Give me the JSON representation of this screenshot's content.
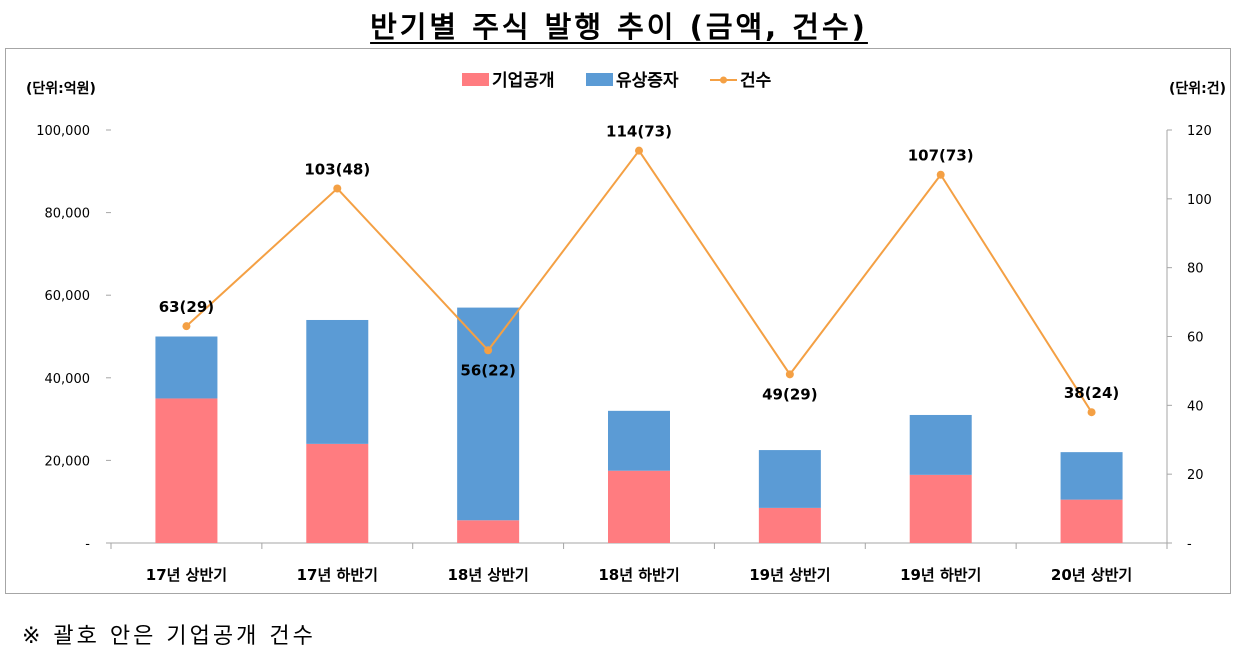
{
  "title": "반기별 주식 발행 추이 (금액, 건수)",
  "note": "※ 괄호 안은 기업공개 건수",
  "chart_data": {
    "type": "bar",
    "stacked": true,
    "categories": [
      "17년 상반기",
      "17년 하반기",
      "18년 상반기",
      "18년 하반기",
      "19년 상반기",
      "19년 하반기",
      "20년 상반기"
    ],
    "left_axis": {
      "unit_label": "(단위:억원)",
      "ylim": [
        0,
        100000
      ],
      "tick_labels": [
        "-",
        "20,000",
        "40,000",
        "60,000",
        "80,000",
        "100,000"
      ]
    },
    "right_axis": {
      "unit_label": "(단위:건)",
      "ylim": [
        0,
        120
      ],
      "tick_labels": [
        "-",
        "20",
        "40",
        "60",
        "80",
        "100",
        "120"
      ]
    },
    "series": [
      {
        "name": "기업공개",
        "type": "bar",
        "axis": "left",
        "color": "#ff7c80",
        "values": [
          35000,
          24000,
          5500,
          17500,
          8500,
          16500,
          10500
        ]
      },
      {
        "name": "유상증자",
        "type": "bar",
        "axis": "left",
        "color": "#5b9bd5",
        "values": [
          15000,
          30000,
          51500,
          14500,
          14000,
          14500,
          11500
        ]
      },
      {
        "name": "건수",
        "type": "line",
        "axis": "right",
        "color": "#f4a044",
        "values": [
          63,
          103,
          56,
          114,
          49,
          107,
          38
        ],
        "data_labels": [
          "63(29)",
          "103(48)",
          "56(22)",
          "114(73)",
          "49(29)",
          "107(73)",
          "38(24)"
        ]
      }
    ],
    "legend_position": "top",
    "grid": false
  }
}
